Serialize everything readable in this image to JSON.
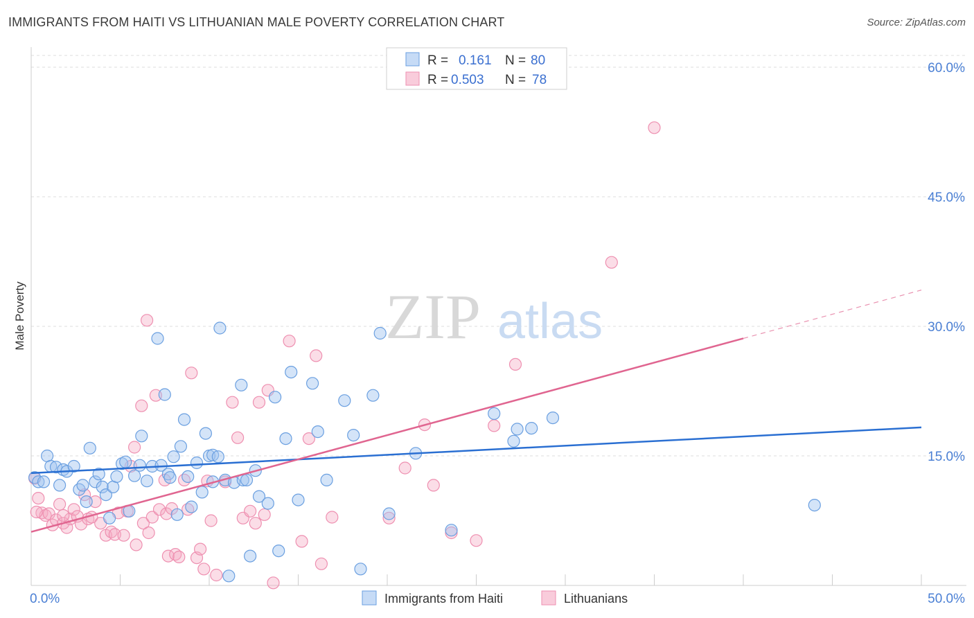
{
  "header": {
    "title": "IMMIGRANTS FROM HAITI VS LITHUANIAN MALE POVERTY CORRELATION CHART",
    "source": "Source: ZipAtlas.com"
  },
  "watermark": {
    "zip": "ZIP",
    "atlas": "atlas"
  },
  "colors": {
    "haiti_fill": "rgba(160,195,240,0.45)",
    "haiti_stroke": "#6a9fe0",
    "haiti_line": "#2a6fd2",
    "lith_fill": "rgba(245,170,195,0.40)",
    "lith_stroke": "#ee8fb0",
    "lith_line": "#e06590",
    "tick_text": "#4a7fd4"
  },
  "legend": {
    "rows": [
      {
        "r_label": "R =",
        "r_value": "0.161",
        "n_label": "N =",
        "n_value": "80"
      },
      {
        "r_label": "R =",
        "r_value": "0.503",
        "n_label": "N =",
        "n_value": "78"
      }
    ],
    "bottom": [
      "Immigrants from Haiti",
      "Lithuanians"
    ]
  },
  "chart_data": {
    "type": "scatter",
    "xlabel": "",
    "ylabel": "Male Poverty",
    "xlim": [
      0,
      50
    ],
    "ylim": [
      0,
      60
    ],
    "x_ticks": [
      "0.0%",
      "50.0%"
    ],
    "y_ticks": [
      {
        "value": 60,
        "label": "60.0%"
      },
      {
        "value": 45,
        "label": "45.0%"
      },
      {
        "value": 30,
        "label": "30.0%"
      },
      {
        "value": 15,
        "label": "15.0%"
      }
    ],
    "grid": true,
    "series": [
      {
        "name": "Immigrants from Haiti",
        "trend": {
          "x": [
            0,
            50
          ],
          "y": [
            13.0,
            18.3
          ]
        },
        "points": [
          [
            0.2,
            12.5
          ],
          [
            0.4,
            12.0
          ],
          [
            0.7,
            12.0
          ],
          [
            0.9,
            15.0
          ],
          [
            1.1,
            13.8
          ],
          [
            1.4,
            13.7
          ],
          [
            1.6,
            11.6
          ],
          [
            1.8,
            13.4
          ],
          [
            2.0,
            13.2
          ],
          [
            2.4,
            13.8
          ],
          [
            2.7,
            11.1
          ],
          [
            2.9,
            11.6
          ],
          [
            3.1,
            9.7
          ],
          [
            3.3,
            15.9
          ],
          [
            3.6,
            12.0
          ],
          [
            3.8,
            12.9
          ],
          [
            4.0,
            11.4
          ],
          [
            4.2,
            10.5
          ],
          [
            4.4,
            7.8
          ],
          [
            4.6,
            11.4
          ],
          [
            4.8,
            12.6
          ],
          [
            5.1,
            14.1
          ],
          [
            5.3,
            14.3
          ],
          [
            5.5,
            8.6
          ],
          [
            5.8,
            12.7
          ],
          [
            6.1,
            13.9
          ],
          [
            6.2,
            17.3
          ],
          [
            6.5,
            12.1
          ],
          [
            6.8,
            13.8
          ],
          [
            7.1,
            28.6
          ],
          [
            7.3,
            13.9
          ],
          [
            7.5,
            22.1
          ],
          [
            7.7,
            12.9
          ],
          [
            7.8,
            12.5
          ],
          [
            8.0,
            14.9
          ],
          [
            8.2,
            8.2
          ],
          [
            8.4,
            16.1
          ],
          [
            8.6,
            19.2
          ],
          [
            8.8,
            12.6
          ],
          [
            9.0,
            9.1
          ],
          [
            9.3,
            14.2
          ],
          [
            9.6,
            10.8
          ],
          [
            9.8,
            17.6
          ],
          [
            10.0,
            15.0
          ],
          [
            10.2,
            15.1
          ],
          [
            10.5,
            14.9
          ],
          [
            10.6,
            29.8
          ],
          [
            10.9,
            12.2
          ],
          [
            11.1,
            1.1
          ],
          [
            11.4,
            11.9
          ],
          [
            11.8,
            23.2
          ],
          [
            11.9,
            12.2
          ],
          [
            12.1,
            12.2
          ],
          [
            12.3,
            3.4
          ],
          [
            12.6,
            13.3
          ],
          [
            12.8,
            10.3
          ],
          [
            13.3,
            9.5
          ],
          [
            13.7,
            21.8
          ],
          [
            14.3,
            17.0
          ],
          [
            14.6,
            24.7
          ],
          [
            15.0,
            9.9
          ],
          [
            15.8,
            23.4
          ],
          [
            16.1,
            17.8
          ],
          [
            16.6,
            12.2
          ],
          [
            17.6,
            21.4
          ],
          [
            18.1,
            17.4
          ],
          [
            18.5,
            1.9
          ],
          [
            19.2,
            22.0
          ],
          [
            19.6,
            29.2
          ],
          [
            20.1,
            8.3
          ],
          [
            21.6,
            15.3
          ],
          [
            23.6,
            6.4
          ],
          [
            26.0,
            19.9
          ],
          [
            27.1,
            16.7
          ],
          [
            27.3,
            18.1
          ],
          [
            28.1,
            18.2
          ],
          [
            29.3,
            19.4
          ],
          [
            44.0,
            9.3
          ],
          [
            13.9,
            4.0
          ],
          [
            10.2,
            12.0
          ]
        ]
      },
      {
        "name": "Lithuanians",
        "trend": {
          "x": [
            0,
            40
          ],
          "y": [
            6.2,
            28.6
          ]
        },
        "trend_dashed": {
          "x": [
            40,
            50
          ],
          "y": [
            28.6,
            34.2
          ]
        },
        "points": [
          [
            0.2,
            12.4
          ],
          [
            0.4,
            10.1
          ],
          [
            0.6,
            8.4
          ],
          [
            0.8,
            8.1
          ],
          [
            1.0,
            8.3
          ],
          [
            1.2,
            7.0
          ],
          [
            1.4,
            7.6
          ],
          [
            1.6,
            9.4
          ],
          [
            1.8,
            7.2
          ],
          [
            2.0,
            6.7
          ],
          [
            2.2,
            7.7
          ],
          [
            2.4,
            8.8
          ],
          [
            2.6,
            8.0
          ],
          [
            2.8,
            7.1
          ],
          [
            3.0,
            10.5
          ],
          [
            3.2,
            7.7
          ],
          [
            3.4,
            7.9
          ],
          [
            3.6,
            9.7
          ],
          [
            3.9,
            7.2
          ],
          [
            4.2,
            5.8
          ],
          [
            4.5,
            6.2
          ],
          [
            4.7,
            5.9
          ],
          [
            4.9,
            8.4
          ],
          [
            5.2,
            5.8
          ],
          [
            5.4,
            8.6
          ],
          [
            5.6,
            13.8
          ],
          [
            5.8,
            16.0
          ],
          [
            5.9,
            4.7
          ],
          [
            6.2,
            20.8
          ],
          [
            6.3,
            7.2
          ],
          [
            6.5,
            30.7
          ],
          [
            6.6,
            6.1
          ],
          [
            6.8,
            7.9
          ],
          [
            7.0,
            22.0
          ],
          [
            7.2,
            8.8
          ],
          [
            7.5,
            12.2
          ],
          [
            7.6,
            8.3
          ],
          [
            7.7,
            3.4
          ],
          [
            7.9,
            8.9
          ],
          [
            8.1,
            3.6
          ],
          [
            8.3,
            3.3
          ],
          [
            8.6,
            12.2
          ],
          [
            8.8,
            8.8
          ],
          [
            9.0,
            24.6
          ],
          [
            9.3,
            3.2
          ],
          [
            9.5,
            4.2
          ],
          [
            9.7,
            1.9
          ],
          [
            9.9,
            12.1
          ],
          [
            10.1,
            7.5
          ],
          [
            10.4,
            1.2
          ],
          [
            10.9,
            12.0
          ],
          [
            11.3,
            21.2
          ],
          [
            11.6,
            17.1
          ],
          [
            11.9,
            7.8
          ],
          [
            12.3,
            8.6
          ],
          [
            12.6,
            7.2
          ],
          [
            12.8,
            21.2
          ],
          [
            13.1,
            8.2
          ],
          [
            13.3,
            22.6
          ],
          [
            13.6,
            0.3
          ],
          [
            14.5,
            28.3
          ],
          [
            15.2,
            5.1
          ],
          [
            15.6,
            17.0
          ],
          [
            16.0,
            26.6
          ],
          [
            16.3,
            2.5
          ],
          [
            16.9,
            7.9
          ],
          [
            20.1,
            7.8
          ],
          [
            21.0,
            13.6
          ],
          [
            22.1,
            18.6
          ],
          [
            22.6,
            11.6
          ],
          [
            23.6,
            6.1
          ],
          [
            25.0,
            5.2
          ],
          [
            26.0,
            18.5
          ],
          [
            27.2,
            25.6
          ],
          [
            32.6,
            37.4
          ],
          [
            35.0,
            53.0
          ],
          [
            0.3,
            8.5
          ],
          [
            1.8,
            8.1
          ]
        ]
      }
    ]
  }
}
